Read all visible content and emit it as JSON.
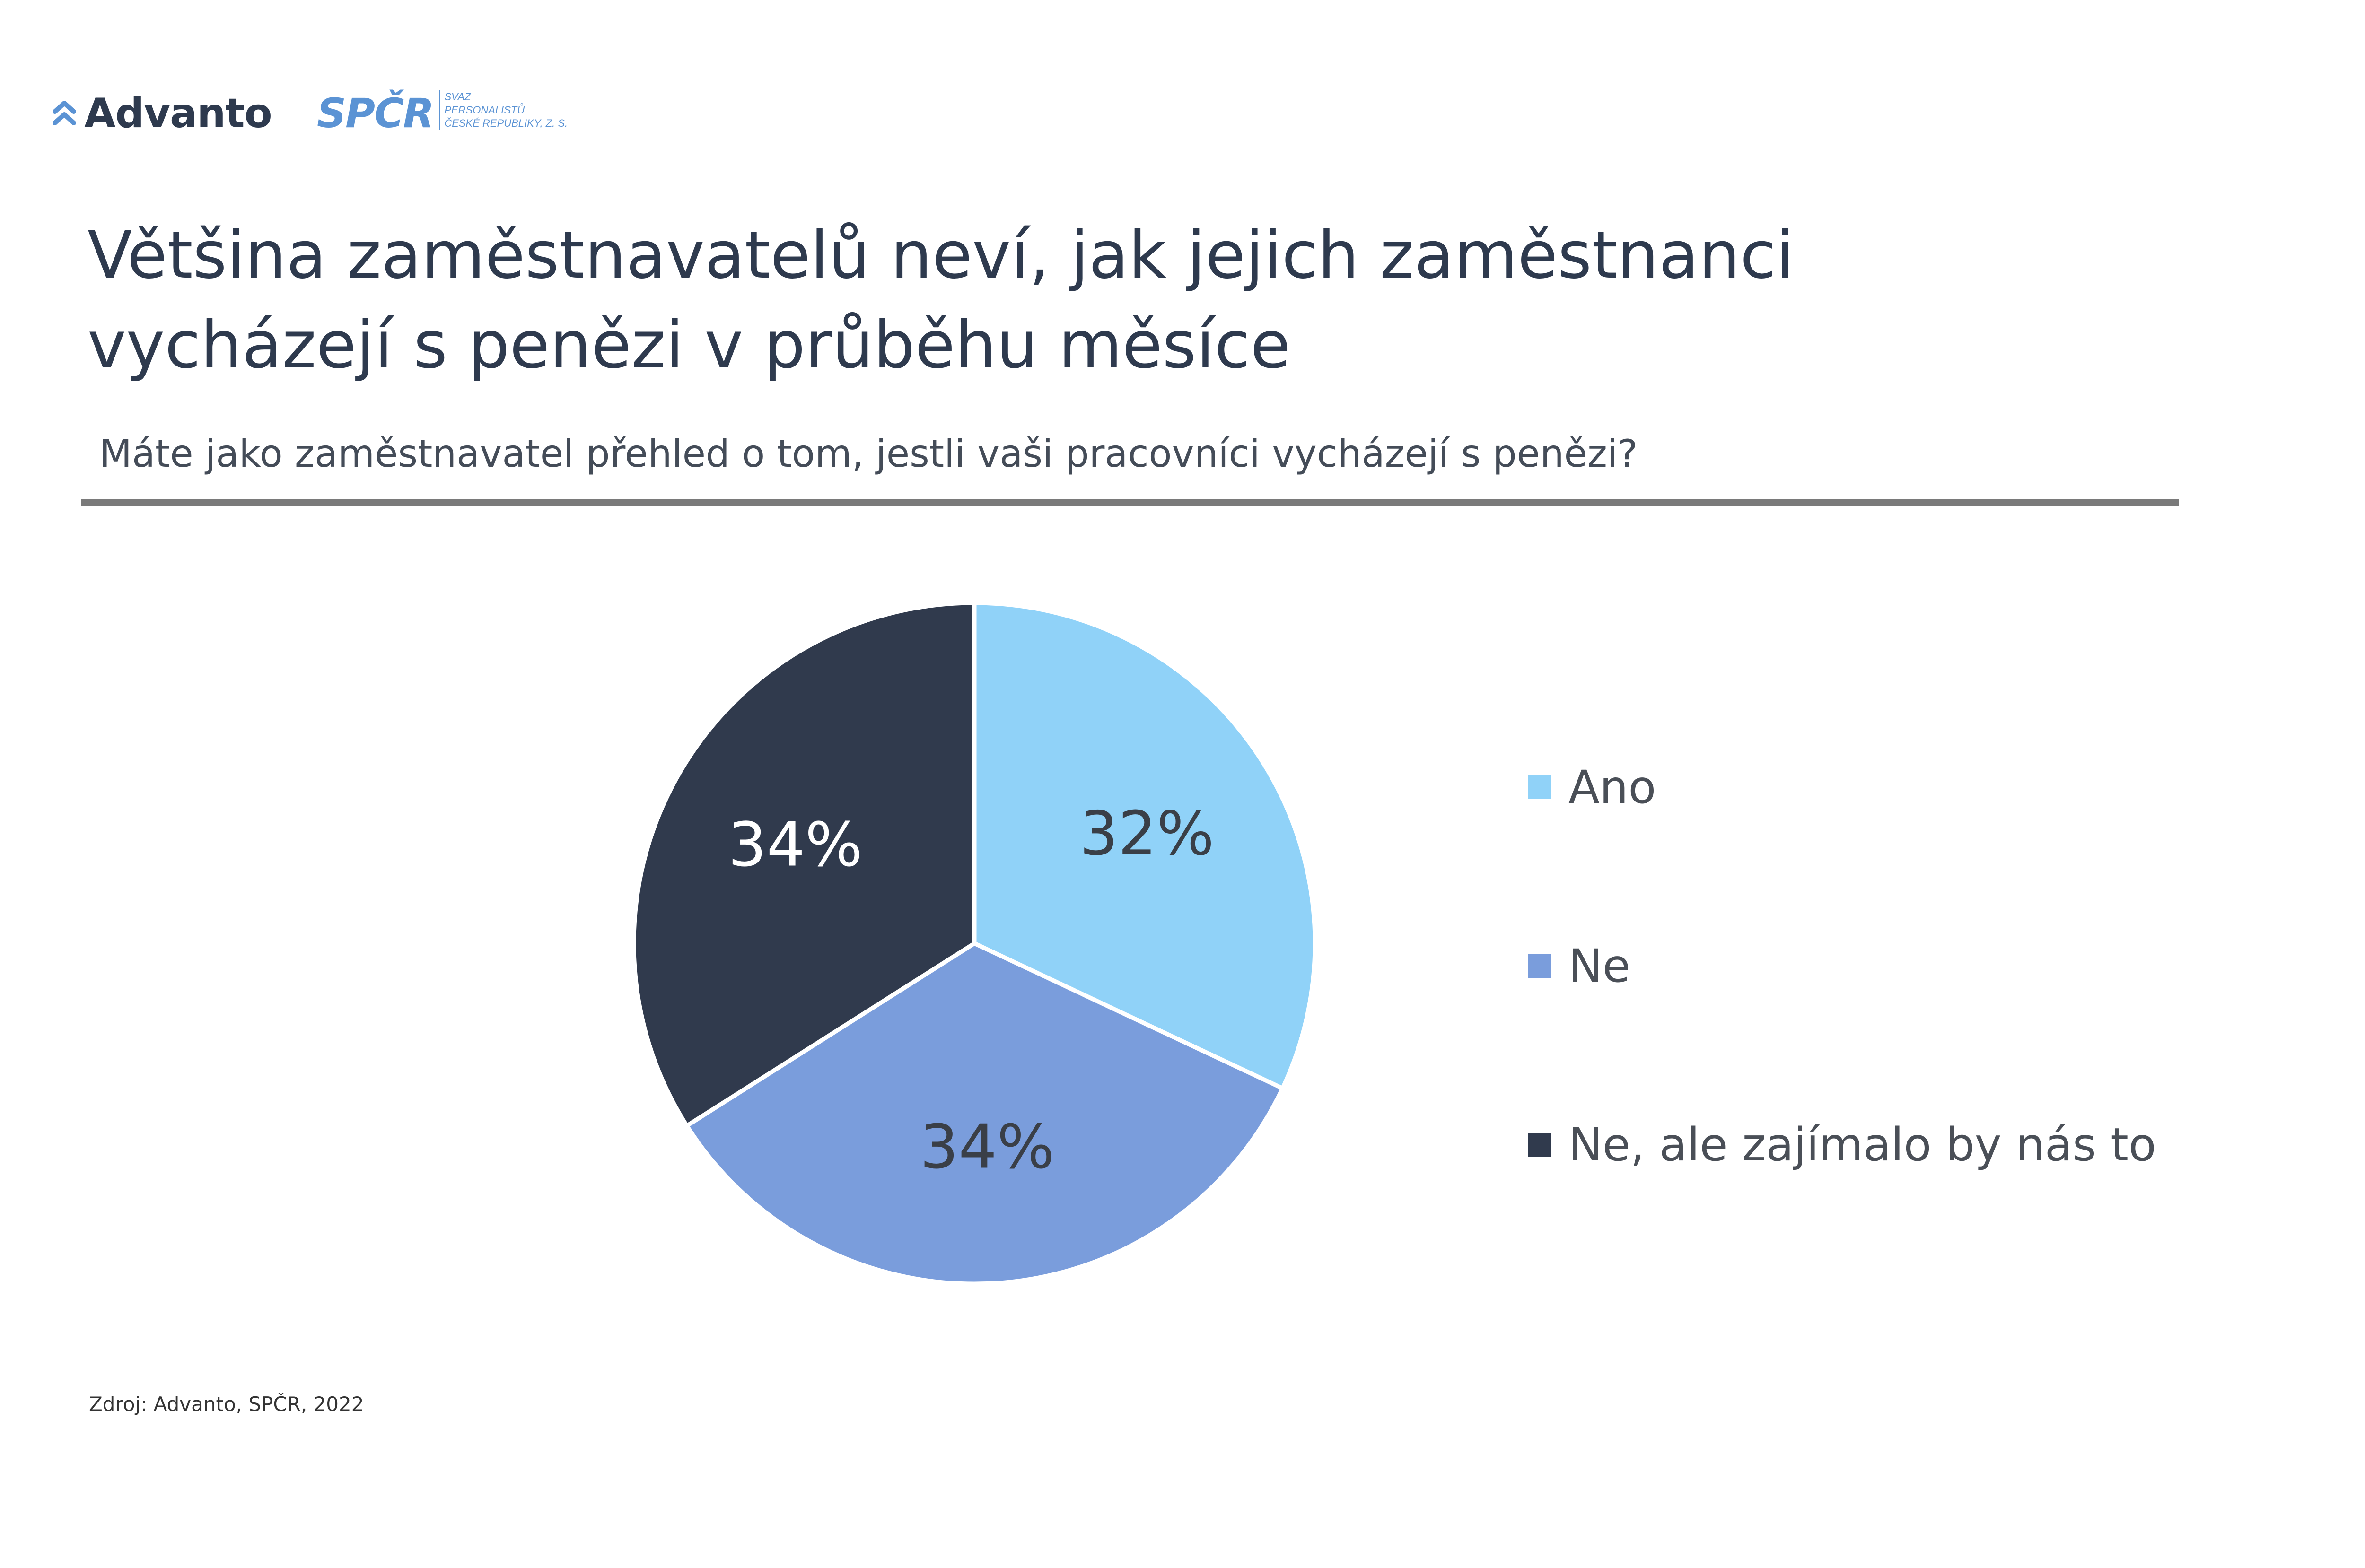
{
  "logos": {
    "advanto_word": "Advanto",
    "spcr_letters": "SPČR",
    "spcr_sub": [
      "SVAZ",
      "PERSONALISTŮ",
      "ČESKÉ REPUBLIKY, Z. S."
    ]
  },
  "title_line1": "Většina zaměstnavatelů neví, jak jejich zaměstnanci",
  "title_line2": "vycházejí s penězi v průběhu měsíce",
  "source": "Zdroj: Advanto, SPČR, 2022",
  "chart_data": {
    "type": "pie",
    "title": "Máte jako zaměstnavatel přehled o tom, jestli vaši pracovníci vycházejí s penězi?",
    "start_angle_deg": 0,
    "direction": "clockwise",
    "legend_position": "right",
    "slices": [
      {
        "label": "Ano",
        "value": 32,
        "display": "32%",
        "color": "#90d2f8",
        "text_color": "#3a3f47"
      },
      {
        "label": "Ne",
        "value": 34,
        "display": "34%",
        "color": "#7a9ddc",
        "text_color": "#3a3f47"
      },
      {
        "label": "Ne, ale zajímalo by nás to",
        "value": 34,
        "display": "34%",
        "color": "#303a4d",
        "text_color": "#ffffff"
      }
    ]
  }
}
